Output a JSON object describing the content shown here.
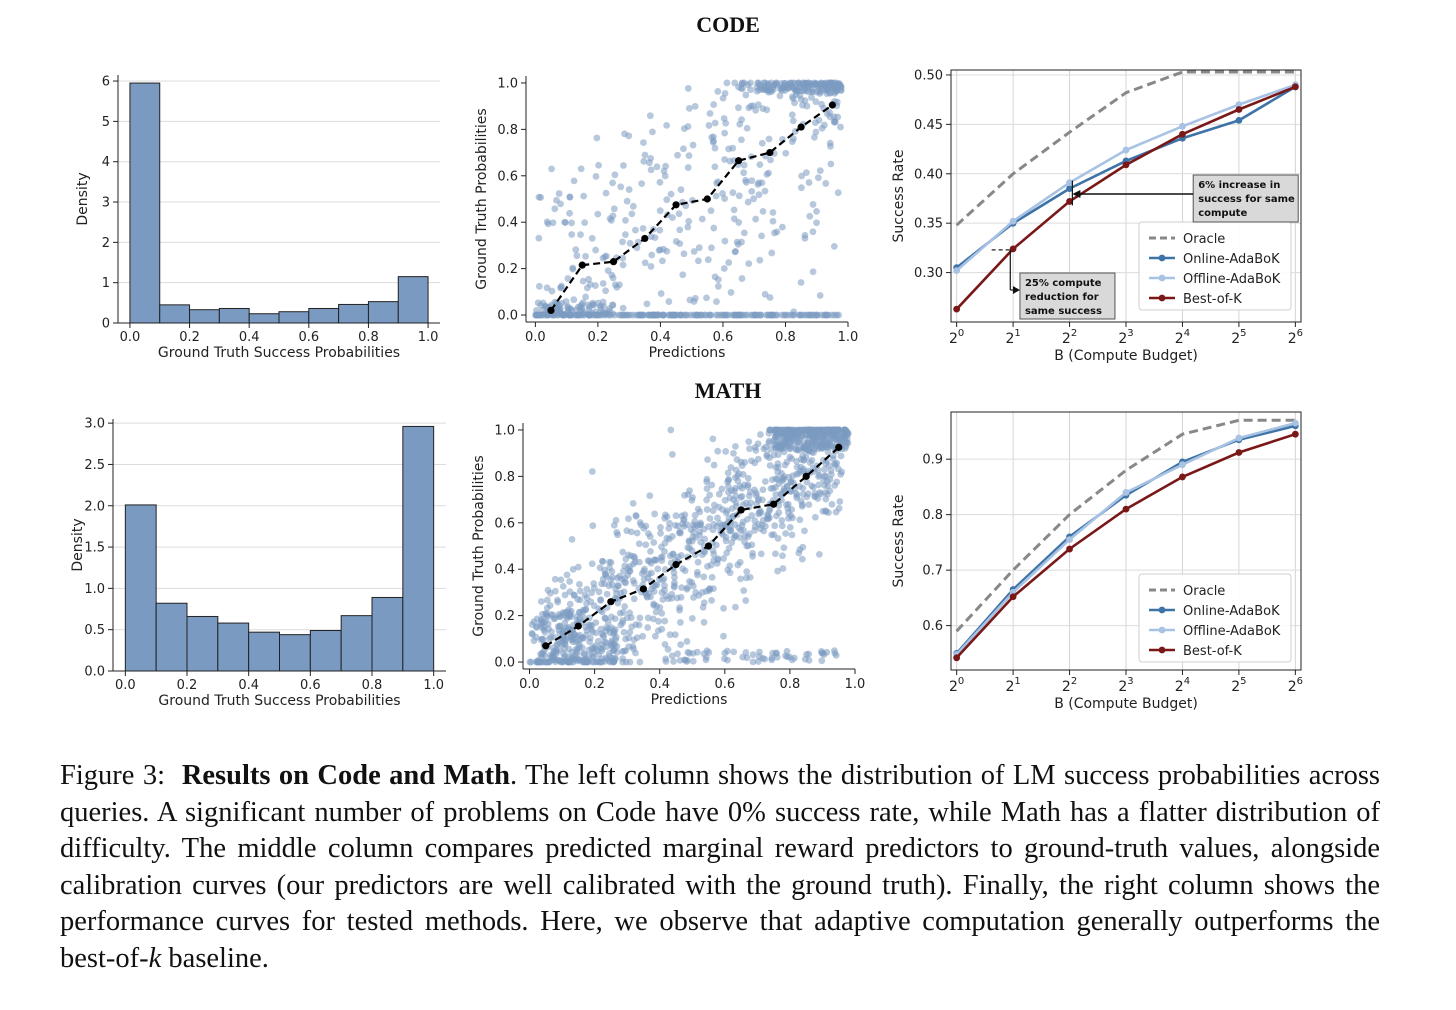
{
  "titles": {
    "code": "CODE",
    "math": "MATH"
  },
  "caption": {
    "label": "Figure 3:",
    "bold": "Results on Code and Math",
    "text1": ". The left column shows the distribution of LM success probabilities across queries. A significant number of problems on Code have 0% success rate, while Math has a flatter distribution of difficulty. The middle column compares predicted marginal reward predictors to ground-truth values, alongside calibration curves (our predictors are well calibrated with the ground truth). Finally, the right column shows the performance curves for tested methods. Here, we observe that adaptive computation generally outperforms the best-of-",
    "k": "k",
    "text2": " baseline."
  },
  "chart_data": [
    {
      "id": "code-hist",
      "type": "bar",
      "group": "CODE",
      "xlabel": "Ground Truth Success Probabilities",
      "ylabel": "Density",
      "bin_edges": [
        0.0,
        0.1,
        0.2,
        0.3,
        0.4,
        0.5,
        0.6,
        0.7,
        0.8,
        0.9,
        1.0
      ],
      "values": [
        5.95,
        0.45,
        0.33,
        0.36,
        0.23,
        0.28,
        0.36,
        0.46,
        0.53,
        1.15
      ],
      "xlim": [
        -0.04,
        1.04
      ],
      "ylim": [
        0,
        6.15
      ],
      "xticks": [
        0.0,
        0.2,
        0.4,
        0.6,
        0.8,
        1.0
      ],
      "xticklabels": [
        "0.0",
        "0.2",
        "0.4",
        "0.6",
        "0.8",
        "1.0"
      ],
      "yticks": [
        0,
        1,
        2,
        3,
        4,
        5,
        6
      ],
      "yticklabels": [
        "0",
        "1",
        "2",
        "3",
        "4",
        "5",
        "6"
      ],
      "grid": "y",
      "color": "#7b9ac1"
    },
    {
      "id": "code-scatter",
      "type": "scatter",
      "group": "CODE",
      "xlabel": "Predictions",
      "ylabel": "Ground Truth Probabilities",
      "xlim": [
        -0.03,
        1.0
      ],
      "ylim": [
        -0.03,
        1.03
      ],
      "xticks": [
        0.0,
        0.2,
        0.4,
        0.6,
        0.8,
        1.0
      ],
      "xticklabels": [
        "0.0",
        "0.2",
        "0.4",
        "0.6",
        "0.8",
        "1.0"
      ],
      "yticks": [
        0.0,
        0.2,
        0.4,
        0.6,
        0.8,
        1.0
      ],
      "yticklabels": [
        "0.0",
        "0.2",
        "0.4",
        "0.6",
        "0.8",
        "1.0"
      ],
      "calibration": {
        "x": [
          0.05,
          0.15,
          0.25,
          0.35,
          0.45,
          0.55,
          0.65,
          0.75,
          0.85,
          0.95
        ],
        "y": [
          0.02,
          0.215,
          0.23,
          0.33,
          0.475,
          0.5,
          0.665,
          0.7,
          0.81,
          0.905
        ]
      },
      "point_color": "#7b9ac1"
    },
    {
      "id": "code-perf",
      "type": "line",
      "group": "CODE",
      "xlabel": "B (Compute Budget)",
      "ylabel": "Success Rate",
      "x": [
        "2^0",
        "2^1",
        "2^2",
        "2^3",
        "2^4",
        "2^5",
        "2^6"
      ],
      "xlim": [
        -0.1,
        6.1
      ],
      "ylim": [
        0.25,
        0.505
      ],
      "yticks": [
        0.3,
        0.35,
        0.4,
        0.45,
        0.5
      ],
      "yticklabels": [
        "0.30",
        "0.35",
        "0.40",
        "0.45",
        "0.50"
      ],
      "grid": "both",
      "legend": "lower-right",
      "series": [
        {
          "name": "Oracle",
          "color": "#888888",
          "dash": true,
          "markers": false,
          "values": [
            0.348,
            0.4,
            0.442,
            0.482,
            0.503,
            0.503,
            0.503
          ]
        },
        {
          "name": "Online-AdaBoK",
          "color": "#3e73a8",
          "values": [
            0.305,
            0.35,
            0.385,
            0.413,
            0.436,
            0.454,
            0.488
          ]
        },
        {
          "name": "Offline-AdaBoK",
          "color": "#a8c2e4",
          "values": [
            0.302,
            0.352,
            0.391,
            0.424,
            0.448,
            0.47,
            0.49
          ]
        },
        {
          "name": "Best-of-K",
          "color": "#7a1818",
          "values": [
            0.263,
            0.324,
            0.372,
            0.409,
            0.44,
            0.465,
            0.488
          ]
        }
      ],
      "annotations": [
        {
          "text": [
            "6% increase in",
            "success for same",
            "compute"
          ]
        },
        {
          "text": [
            "25% compute",
            "reduction for",
            "same success"
          ]
        }
      ]
    },
    {
      "id": "math-hist",
      "type": "bar",
      "group": "MATH",
      "xlabel": "Ground Truth Success Probabilities",
      "ylabel": "Density",
      "bin_edges": [
        0.0,
        0.1,
        0.2,
        0.3,
        0.4,
        0.5,
        0.6,
        0.7,
        0.8,
        0.9,
        1.0
      ],
      "values": [
        2.01,
        0.82,
        0.66,
        0.58,
        0.47,
        0.44,
        0.49,
        0.67,
        0.89,
        2.96
      ],
      "xlim": [
        -0.04,
        1.04
      ],
      "ylim": [
        0,
        3.05
      ],
      "xticks": [
        0.0,
        0.2,
        0.4,
        0.6,
        0.8,
        1.0
      ],
      "xticklabels": [
        "0.0",
        "0.2",
        "0.4",
        "0.6",
        "0.8",
        "1.0"
      ],
      "yticks": [
        0.0,
        0.5,
        1.0,
        1.5,
        2.0,
        2.5,
        3.0
      ],
      "yticklabels": [
        "0.0",
        "0.5",
        "1.0",
        "1.5",
        "2.0",
        "2.5",
        "3.0"
      ],
      "grid": "y",
      "color": "#7b9ac1"
    },
    {
      "id": "math-scatter",
      "type": "scatter",
      "group": "MATH",
      "xlabel": "Predictions",
      "ylabel": "Ground Truth Probabilities",
      "xlim": [
        -0.02,
        1.0
      ],
      "ylim": [
        -0.03,
        1.03
      ],
      "xticks": [
        0.0,
        0.2,
        0.4,
        0.6,
        0.8,
        1.0
      ],
      "xticklabels": [
        "0.0",
        "0.2",
        "0.4",
        "0.6",
        "0.8",
        "1.0"
      ],
      "yticks": [
        0.0,
        0.2,
        0.4,
        0.6,
        0.8,
        1.0
      ],
      "yticklabels": [
        "0.0",
        "0.2",
        "0.4",
        "0.6",
        "0.8",
        "1.0"
      ],
      "calibration": {
        "x": [
          0.05,
          0.15,
          0.25,
          0.35,
          0.45,
          0.55,
          0.65,
          0.75,
          0.85,
          0.95
        ],
        "y": [
          0.07,
          0.155,
          0.26,
          0.315,
          0.42,
          0.5,
          0.655,
          0.68,
          0.8,
          0.925
        ]
      },
      "point_color": "#7b9ac1"
    },
    {
      "id": "math-perf",
      "type": "line",
      "group": "MATH",
      "xlabel": "B (Compute Budget)",
      "ylabel": "Success Rate",
      "x": [
        "2^0",
        "2^1",
        "2^2",
        "2^3",
        "2^4",
        "2^5",
        "2^6"
      ],
      "xlim": [
        -0.1,
        6.1
      ],
      "ylim": [
        0.52,
        0.985
      ],
      "yticks": [
        0.6,
        0.7,
        0.8,
        0.9
      ],
      "yticklabels": [
        "0.6",
        "0.7",
        "0.8",
        "0.9"
      ],
      "grid": "both",
      "legend": "lower-right",
      "series": [
        {
          "name": "Oracle",
          "color": "#888888",
          "dash": true,
          "markers": false,
          "values": [
            0.59,
            0.7,
            0.8,
            0.88,
            0.945,
            0.97,
            0.97
          ]
        },
        {
          "name": "Online-AdaBoK",
          "color": "#3e73a8",
          "values": [
            0.55,
            0.665,
            0.76,
            0.835,
            0.895,
            0.935,
            0.96
          ]
        },
        {
          "name": "Offline-AdaBoK",
          "color": "#a8c2e4",
          "values": [
            0.548,
            0.66,
            0.755,
            0.84,
            0.89,
            0.938,
            0.965
          ]
        },
        {
          "name": "Best-of-K",
          "color": "#7a1818",
          "values": [
            0.542,
            0.652,
            0.738,
            0.81,
            0.868,
            0.912,
            0.945
          ]
        }
      ]
    }
  ]
}
